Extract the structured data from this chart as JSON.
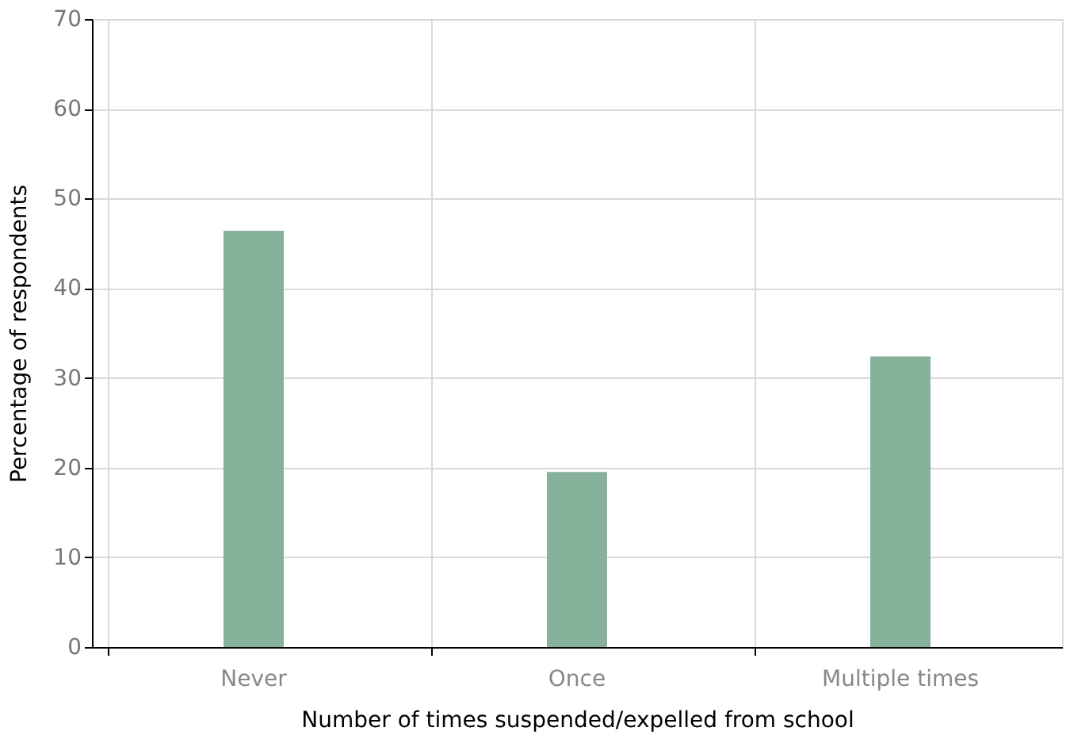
{
  "chart_data": {
    "type": "bar",
    "xlabel": "Number of times suspended/expelled from school",
    "ylabel": "Percentage of respondents",
    "categories": [
      "Never",
      "Once",
      "Multiple times"
    ],
    "values": [
      46.4,
      19.5,
      32.4
    ],
    "color": "#86b19a",
    "ylim": [
      0,
      70
    ],
    "yticks": [
      0,
      10,
      20,
      30,
      40,
      50,
      60,
      70
    ],
    "grid": true
  }
}
